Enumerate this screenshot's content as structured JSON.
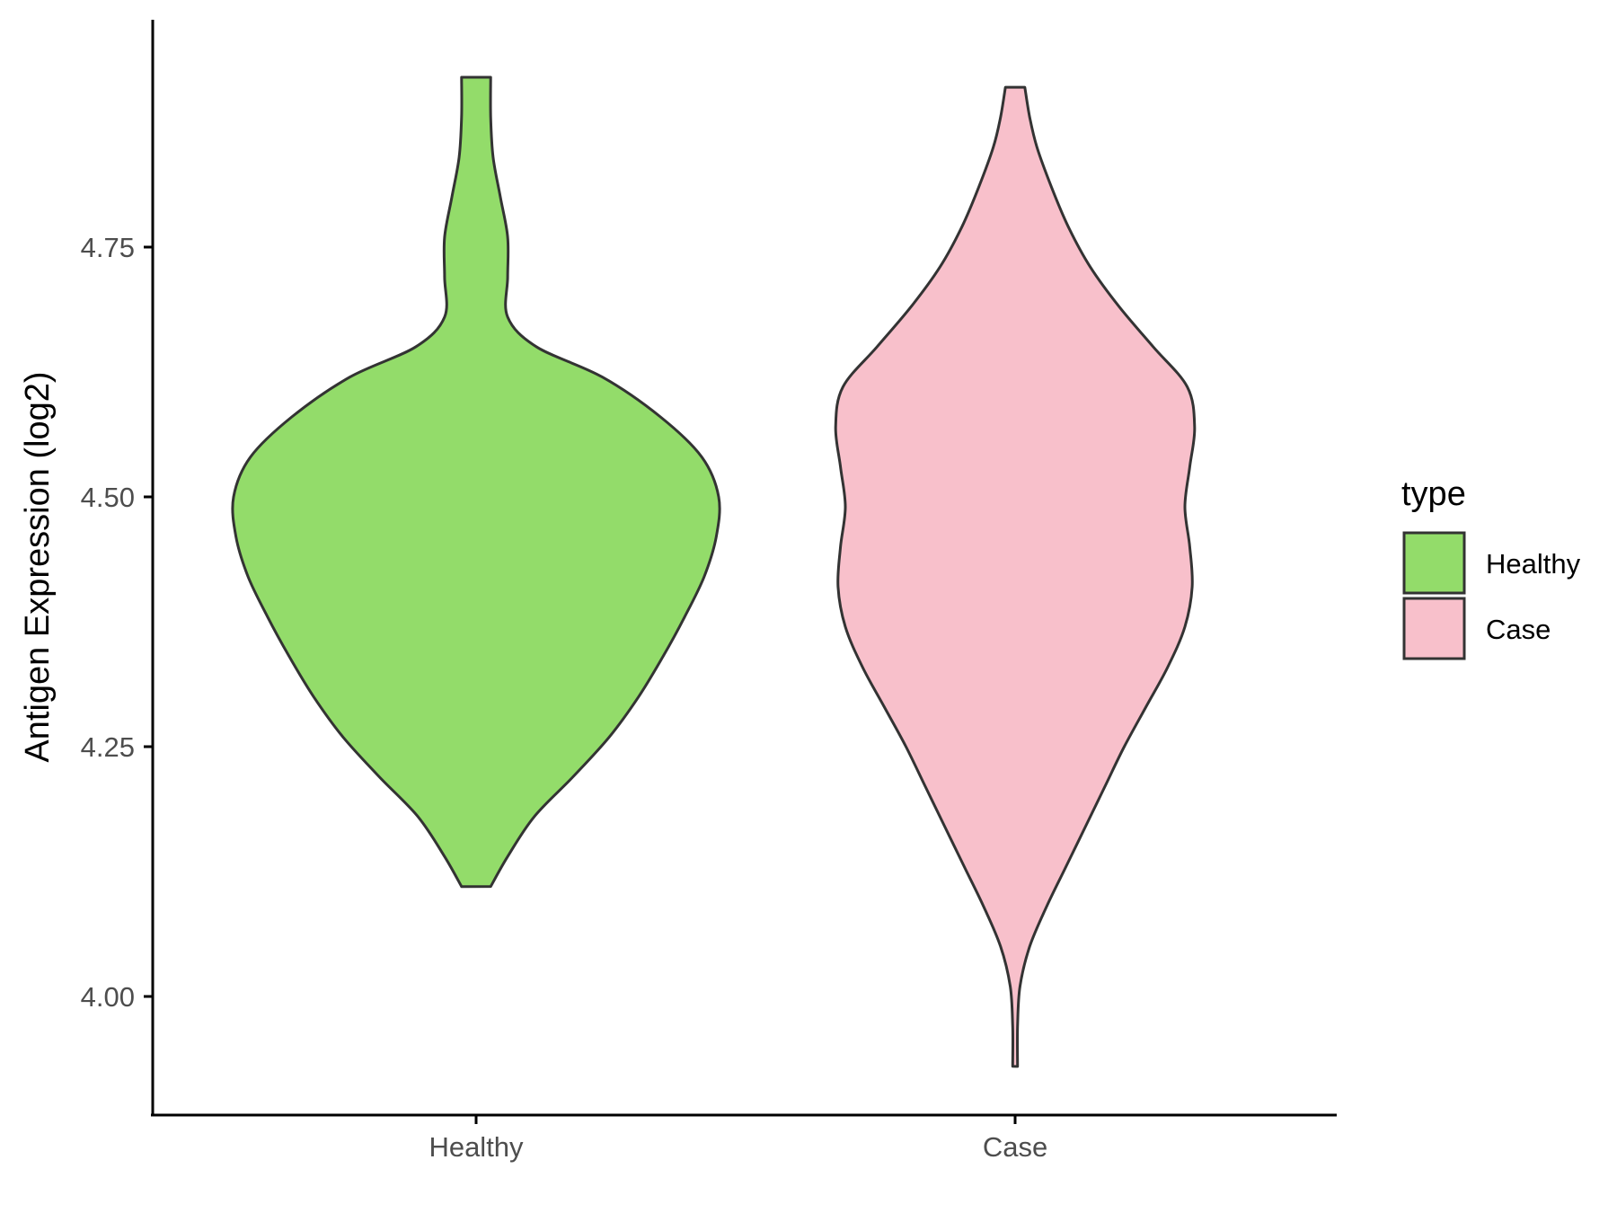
{
  "chart_data": {
    "type": "violin",
    "title": "",
    "xlabel": "",
    "ylabel": "Antigen Expression (log2)",
    "ylim": [
      3.88,
      4.98
    ],
    "y_ticks": [
      {
        "value": 4.0,
        "label": "4.00"
      },
      {
        "value": 4.25,
        "label": "4.25"
      },
      {
        "value": 4.5,
        "label": "4.50"
      },
      {
        "value": 4.75,
        "label": "4.75"
      }
    ],
    "grid": false,
    "categories": [
      "Healthy",
      "Case"
    ],
    "legend": {
      "title": "type",
      "position": "right",
      "entries": [
        {
          "label": "Healthy",
          "color": "#93dc6a"
        },
        {
          "label": "Case",
          "color": "#f8c0cb"
        }
      ]
    },
    "series": [
      {
        "category": "Healthy",
        "fill": "#93dc6a",
        "min": 4.11,
        "max": 4.92,
        "density_profile": [
          [
            4.11,
            0.06
          ],
          [
            4.14,
            0.13
          ],
          [
            4.18,
            0.24
          ],
          [
            4.22,
            0.4
          ],
          [
            4.26,
            0.55
          ],
          [
            4.3,
            0.67
          ],
          [
            4.34,
            0.77
          ],
          [
            4.38,
            0.86
          ],
          [
            4.42,
            0.94
          ],
          [
            4.46,
            0.99
          ],
          [
            4.5,
            1.0
          ],
          [
            4.54,
            0.93
          ],
          [
            4.58,
            0.76
          ],
          [
            4.62,
            0.52
          ],
          [
            4.65,
            0.25
          ],
          [
            4.68,
            0.13
          ],
          [
            4.72,
            0.13
          ],
          [
            4.76,
            0.13
          ],
          [
            4.8,
            0.1
          ],
          [
            4.84,
            0.07
          ],
          [
            4.88,
            0.06
          ],
          [
            4.92,
            0.06
          ]
        ]
      },
      {
        "category": "Case",
        "fill": "#f8c0cb",
        "min": 3.93,
        "max": 4.91,
        "density_profile": [
          [
            3.93,
            0.01
          ],
          [
            3.97,
            0.01
          ],
          [
            4.01,
            0.02
          ],
          [
            4.05,
            0.06
          ],
          [
            4.09,
            0.13
          ],
          [
            4.13,
            0.21
          ],
          [
            4.17,
            0.29
          ],
          [
            4.21,
            0.37
          ],
          [
            4.25,
            0.45
          ],
          [
            4.29,
            0.54
          ],
          [
            4.33,
            0.63
          ],
          [
            4.37,
            0.7
          ],
          [
            4.41,
            0.73
          ],
          [
            4.45,
            0.72
          ],
          [
            4.49,
            0.7
          ],
          [
            4.53,
            0.72
          ],
          [
            4.57,
            0.74
          ],
          [
            4.61,
            0.71
          ],
          [
            4.65,
            0.57
          ],
          [
            4.69,
            0.43
          ],
          [
            4.73,
            0.31
          ],
          [
            4.77,
            0.22
          ],
          [
            4.81,
            0.15
          ],
          [
            4.85,
            0.09
          ],
          [
            4.88,
            0.06
          ],
          [
            4.91,
            0.04
          ]
        ]
      }
    ]
  }
}
